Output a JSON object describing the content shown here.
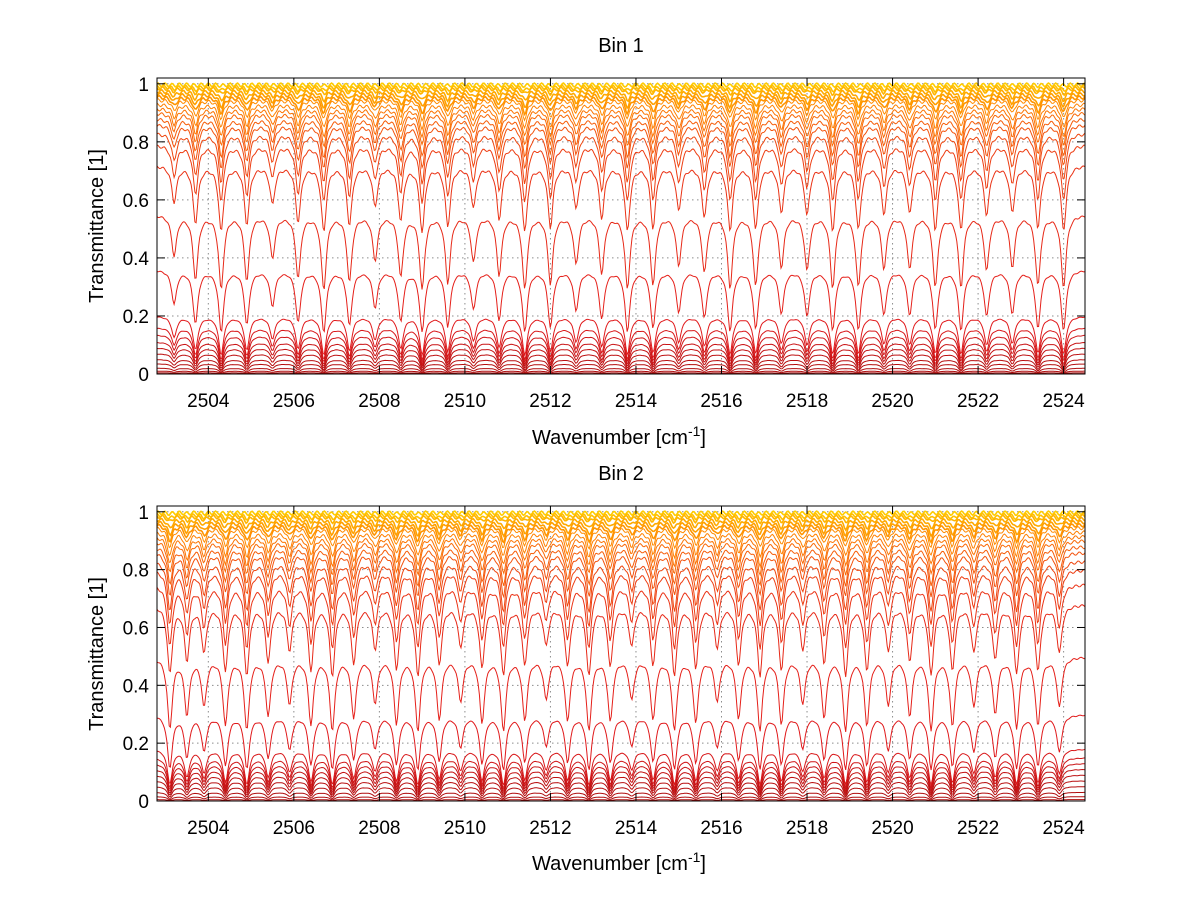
{
  "chart_data": [
    {
      "type": "line",
      "title": "Bin 1",
      "xlabel": "Wavenumber [cm",
      "xlabel_sup": "-1",
      "xlabel_end": "]",
      "ylabel": "Transmittance [1]",
      "xlim": [
        2502.8,
        2524.5
      ],
      "ylim": [
        0,
        1.02
      ],
      "grid": true,
      "legend": "none",
      "x_ticks": [
        2504,
        2506,
        2508,
        2510,
        2512,
        2514,
        2516,
        2518,
        2520,
        2522,
        2524
      ],
      "x_tick_labels": [
        "2504",
        "2506",
        "2508",
        "2510",
        "2512",
        "2514",
        "2516",
        "2518",
        "2520",
        "2522",
        "2524"
      ],
      "y_ticks": [
        0,
        0.2,
        0.4,
        0.6,
        0.8,
        1
      ],
      "y_tick_labels": [
        "0",
        "0.2",
        "0.4",
        "0.6",
        "0.8",
        "1"
      ],
      "series_baselines": [
        0.997,
        0.99,
        0.985,
        0.975,
        0.965,
        0.955,
        0.945,
        0.93,
        0.915,
        0.9,
        0.88,
        0.86,
        0.83,
        0.79,
        0.72,
        0.55,
        0.36,
        0.2,
        0.16,
        0.135,
        0.11,
        0.09,
        0.07,
        0.05,
        0.035,
        0.02,
        0.01,
        0.004
      ],
      "line_centers_cm1": [
        2503.2,
        2503.7,
        2504.3,
        2504.9,
        2505.5,
        2506.1,
        2506.7,
        2507.3,
        2507.9,
        2508.5,
        2509.0,
        2509.6,
        2510.2,
        2510.8,
        2511.4,
        2512.0,
        2512.6,
        2513.2,
        2513.8,
        2514.4,
        2515.0,
        2515.6,
        2516.2,
        2516.8,
        2517.4,
        2518.0,
        2518.6,
        2519.2,
        2519.8,
        2520.4,
        2521.0,
        2521.6,
        2522.2,
        2522.8,
        2523.4,
        2524.0
      ],
      "colors": [
        "#7f0000",
        "#e31a1c",
        "#ff7f00",
        "#ffcc00"
      ]
    },
    {
      "type": "line",
      "title": "Bin 2",
      "xlabel": "Wavenumber [cm",
      "xlabel_sup": "-1",
      "xlabel_end": "]",
      "ylabel": "Transmittance [1]",
      "xlim": [
        2502.8,
        2524.5
      ],
      "ylim": [
        0,
        1.02
      ],
      "grid": true,
      "legend": "none",
      "x_ticks": [
        2504,
        2506,
        2508,
        2510,
        2512,
        2514,
        2516,
        2518,
        2520,
        2522,
        2524
      ],
      "x_tick_labels": [
        "2504",
        "2506",
        "2508",
        "2510",
        "2512",
        "2514",
        "2516",
        "2518",
        "2520",
        "2522",
        "2524"
      ],
      "y_ticks": [
        0,
        0.2,
        0.4,
        0.6,
        0.8,
        1
      ],
      "y_tick_labels": [
        "0",
        "0.2",
        "0.4",
        "0.6",
        "0.8",
        "1"
      ],
      "series_baselines": [
        0.997,
        0.99,
        0.985,
        0.975,
        0.965,
        0.955,
        0.945,
        0.93,
        0.915,
        0.9,
        0.88,
        0.86,
        0.83,
        0.8,
        0.75,
        0.68,
        0.5,
        0.3,
        0.18,
        0.15,
        0.13,
        0.11,
        0.09,
        0.07,
        0.05,
        0.03,
        0.015,
        0.005
      ],
      "line_centers_cm1": [
        2503.1,
        2503.5,
        2503.9,
        2504.4,
        2504.9,
        2505.4,
        2505.9,
        2506.4,
        2506.9,
        2507.4,
        2507.9,
        2508.4,
        2508.9,
        2509.4,
        2509.9,
        2510.4,
        2510.9,
        2511.4,
        2511.9,
        2512.4,
        2512.9,
        2513.4,
        2513.9,
        2514.4,
        2514.9,
        2515.4,
        2515.9,
        2516.4,
        2516.9,
        2517.4,
        2517.9,
        2518.4,
        2518.9,
        2519.4,
        2519.9,
        2520.4,
        2520.9,
        2521.4,
        2521.9,
        2522.4,
        2522.9,
        2523.4,
        2523.9
      ],
      "colors": [
        "#7f0000",
        "#e31a1c",
        "#ff7f00",
        "#ffcc00"
      ]
    }
  ]
}
